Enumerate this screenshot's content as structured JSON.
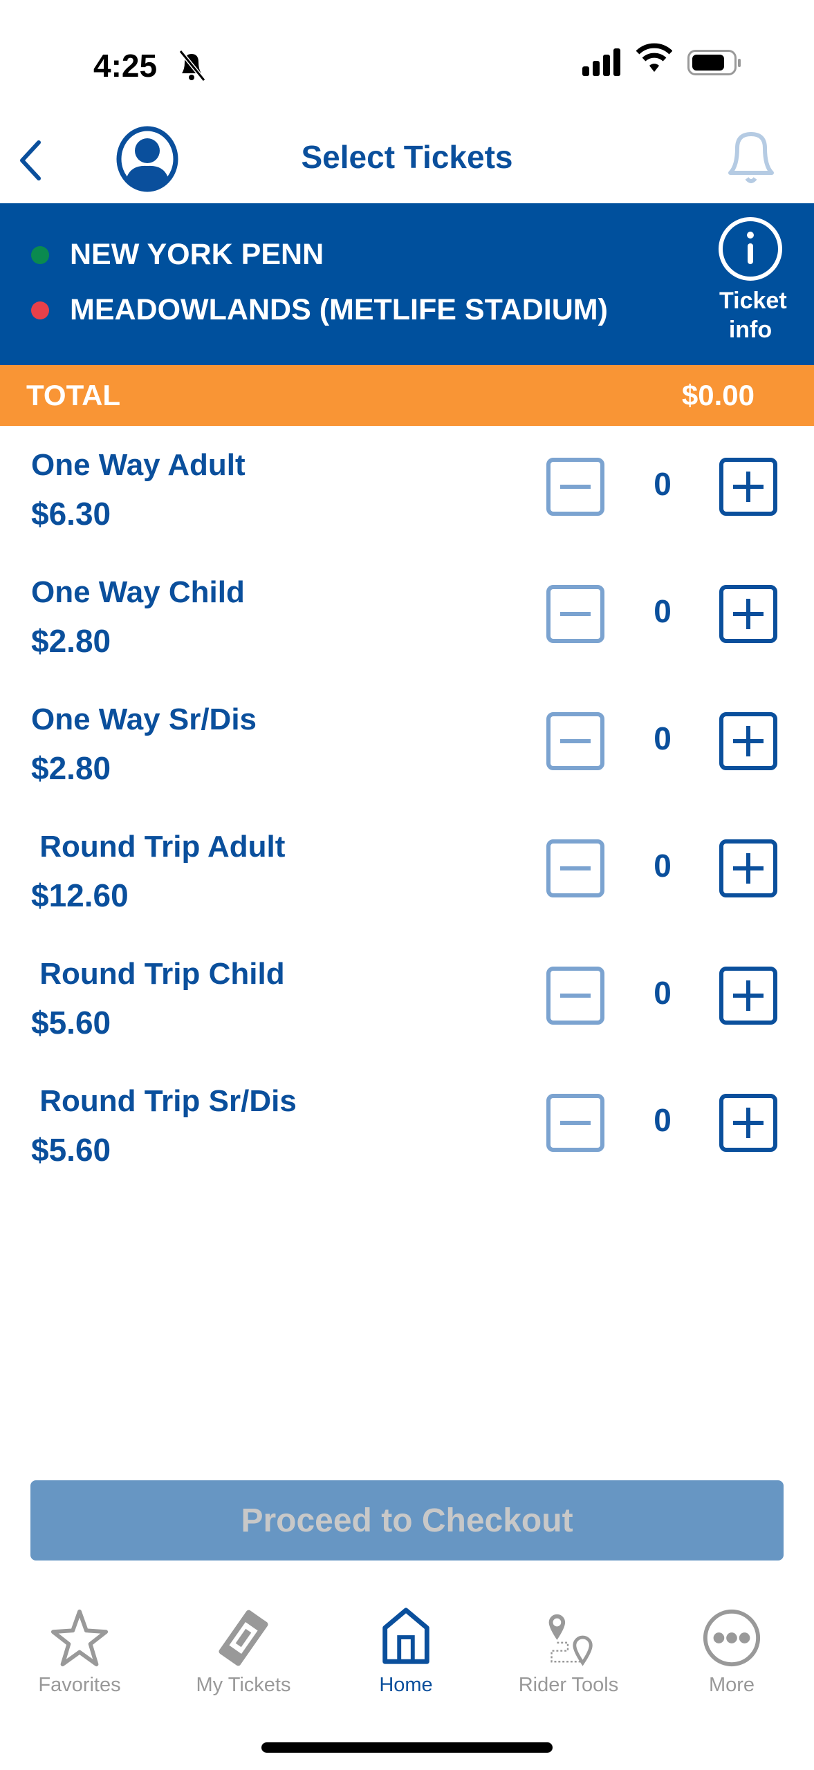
{
  "status": {
    "time": "4:25"
  },
  "header": {
    "title": "Select Tickets"
  },
  "route": {
    "origin": "NEW YORK PENN",
    "destination": "MEADOWLANDS (METLIFE STADIUM)",
    "ticket_info_label": "Ticket info",
    "origin_color": "#0a8a4f",
    "destination_color": "#e8404a"
  },
  "total": {
    "label": "TOTAL",
    "value": "$0.00"
  },
  "tickets": [
    {
      "name": "One Way Adult",
      "price": "$6.30",
      "count": "0"
    },
    {
      "name": "One Way Child",
      "price": "$2.80",
      "count": "0"
    },
    {
      "name": "One Way Sr/Dis",
      "price": "$2.80",
      "count": "0"
    },
    {
      "name": " Round Trip Adult",
      "price": "$12.60",
      "count": "0"
    },
    {
      "name": " Round Trip Child",
      "price": "$5.60",
      "count": "0"
    },
    {
      "name": " Round Trip Sr/Dis",
      "price": "$5.60",
      "count": "0"
    }
  ],
  "checkout": {
    "label": "Proceed to Checkout"
  },
  "tabs": [
    {
      "label": "Favorites",
      "icon": "star-icon"
    },
    {
      "label": "My Tickets",
      "icon": "ticket-icon"
    },
    {
      "label": "Home",
      "icon": "home-icon",
      "active": true
    },
    {
      "label": "Rider Tools",
      "icon": "map-pins-icon"
    },
    {
      "label": "More",
      "icon": "more-icon"
    }
  ],
  "colors": {
    "brand_blue": "#00509d",
    "total_orange": "#f99535",
    "button_disabled": "#6796c3"
  }
}
